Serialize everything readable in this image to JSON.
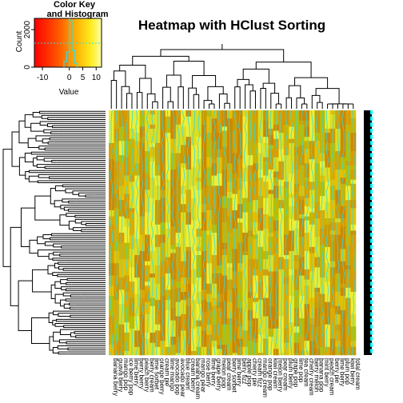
{
  "chart_data": {
    "type": "heatmap",
    "title": "Heatmap with HClust Sorting",
    "colors": {
      "low": "#ff0000",
      "mid_low": "#ff6600",
      "mid": "#ffcc00",
      "high": "#ffff33",
      "trace": "#33dddd",
      "row_side": "#000000",
      "row_side_accent": "#00ffff"
    },
    "color_key": {
      "title_line1": "Color Key",
      "title_line2": "and Histogram",
      "xlabel": "Value",
      "ylabel": "Count",
      "x_ticks": [
        "-10",
        "0",
        "5",
        "10"
      ],
      "x_tick_values": [
        -10,
        0,
        5,
        10
      ],
      "y_ticks": [
        "0",
        "2000"
      ],
      "y_tick_values": [
        0,
        2000
      ],
      "xlim": [
        -13,
        12
      ],
      "ylim": [
        0,
        2600
      ],
      "histogram": [
        {
          "x": -1.5,
          "count": 300
        },
        {
          "x": -0.5,
          "count": 800
        },
        {
          "x": 0.5,
          "count": 2500
        },
        {
          "x": 1.5,
          "count": 900
        },
        {
          "x": 2.5,
          "count": 200
        }
      ]
    },
    "legend_placement": "top-left",
    "n_columns": 48,
    "column_labels": [
      "banana berry",
      "guava berry",
      "mango pop",
      "ice berry pop",
      "lime berry",
      "berry berry",
      "peach berry",
      "berry cream",
      "lime sorbet",
      "orange berry",
      "cream pie",
      "lime mango",
      "avocado pop",
      "avocado pear",
      "blue cream",
      "cream berry",
      "banana cream",
      "mango pear",
      "rose berry",
      "lime berry",
      "grape berry",
      "melon pop",
      "pear cream",
      "berry sorbet",
      "lime berry",
      "berry fizz",
      "apple pop",
      "cherry pie",
      "cream fizz",
      "mango cream",
      "orange pop",
      "kiwi cream",
      "melon berry",
      "pear cream",
      "plum berry",
      "grape pop",
      "lime pop",
      "tea cream",
      "cherry cream",
      "berry melon",
      "banana pop",
      "mint berry",
      "peach cream",
      "berry pie",
      "lime berry",
      "plum pop",
      "kiwi berry",
      "total cream"
    ]
  }
}
